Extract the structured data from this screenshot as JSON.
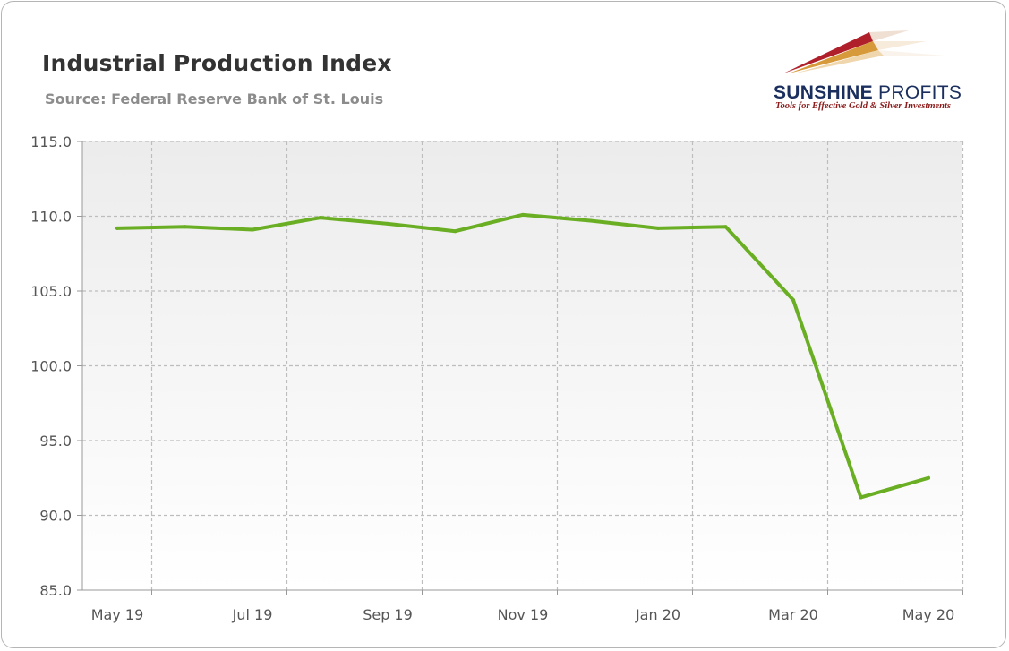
{
  "title": "Industrial Production Index",
  "subtitle": "Source: Federal Reserve Bank of St. Louis",
  "logo": {
    "name_bold": "SUNSHINE",
    "name_regular": " PROFITS",
    "tagline": "Tools for Effective Gold & Silver Investments"
  },
  "colors": {
    "line": "#6aae23",
    "plot_top": "#ececec",
    "plot_bottom": "#ffffff",
    "grid": "#bdbdbd",
    "axis": "#999999"
  },
  "chart_data": {
    "type": "line",
    "title": "Industrial Production Index",
    "subtitle": "Source: Federal Reserve Bank of St. Louis",
    "xlabel": "",
    "ylabel": "",
    "x": [
      "May 19",
      "Jun 19",
      "Jul 19",
      "Aug 19",
      "Sep 19",
      "Oct 19",
      "Nov 19",
      "Dec 19",
      "Jan 20",
      "Feb 20",
      "Mar 20",
      "Apr 20",
      "May 20"
    ],
    "x_tick_labels": [
      "May 19",
      "Jul 19",
      "Sep 19",
      "Nov 19",
      "Jan 20",
      "Mar 20",
      "May 20"
    ],
    "y_tick_labels": [
      "115.0",
      "110.0",
      "105.0",
      "100.0",
      "95.0",
      "90.0",
      "85.0"
    ],
    "ylim": [
      85,
      115
    ],
    "yticks": [
      85,
      90,
      95,
      100,
      105,
      110,
      115
    ],
    "grid": true,
    "legend": "none",
    "series": [
      {
        "values": [
          109.2,
          109.3,
          109.1,
          109.9,
          109.5,
          109.0,
          110.1,
          109.7,
          109.2,
          109.3,
          104.4,
          91.2,
          92.5
        ]
      }
    ]
  }
}
